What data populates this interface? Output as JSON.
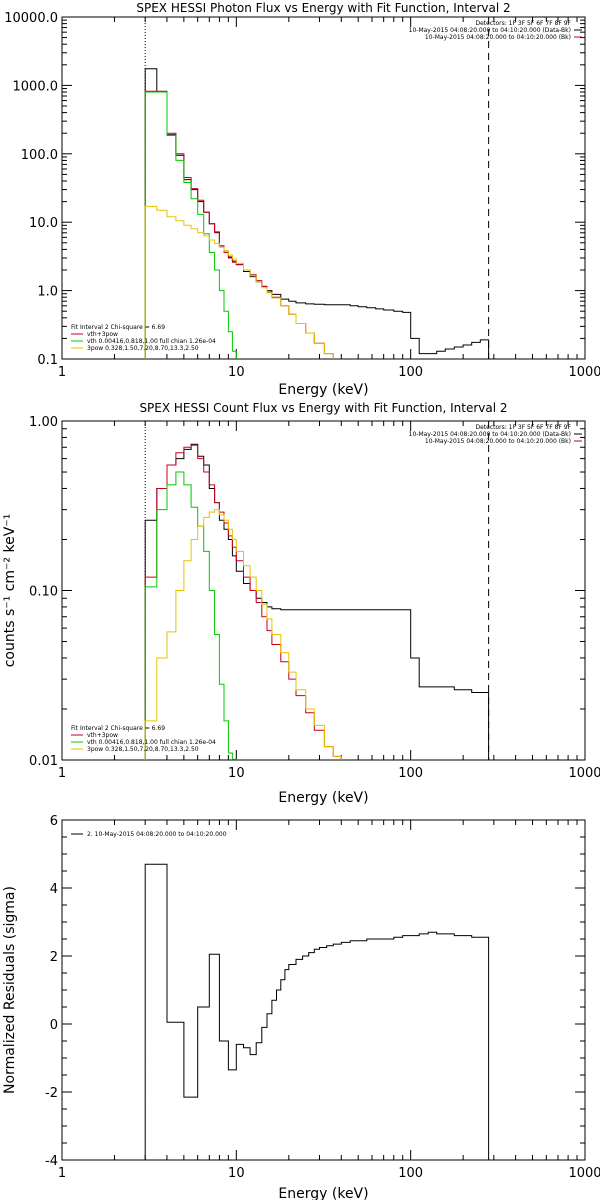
{
  "chart_data": [
    {
      "type": "line",
      "title": "SPEX HESSI Photon Flux vs Energy with Fit Function, Interval 2",
      "xlabel": "Energy (keV)",
      "ylabel": "",
      "xscale": "log",
      "yscale": "log",
      "xlim": [
        1,
        1000
      ],
      "ylim": [
        0.1,
        10000
      ],
      "xticks": [
        {
          "v": 1,
          "label": "1"
        },
        {
          "v": 10,
          "label": "10"
        },
        {
          "v": 100,
          "label": "100"
        },
        {
          "v": 1000,
          "label": "1000"
        }
      ],
      "yticks": [
        {
          "v": 0.1,
          "label": "0.1"
        },
        {
          "v": 1,
          "label": "1.0"
        },
        {
          "v": 10,
          "label": "10.0"
        },
        {
          "v": 100,
          "label": "100.0"
        },
        {
          "v": 1000,
          "label": "1000.0"
        },
        {
          "v": 10000,
          "label": "10000.0"
        }
      ],
      "vlines": [
        {
          "x": 3,
          "style": "dotted"
        },
        {
          "x": 280,
          "style": "dashed"
        }
      ],
      "legend_topright": [
        {
          "text": "Detectors: 1F 3F 5F 6F 7F 8F 9F",
          "color": ""
        },
        {
          "text": "10-May-2015 04:08:20.000 to 04:10:20.000 (Data-Bk)",
          "color": "#000000"
        },
        {
          "text": "10-May-2015 04:08:20.000 to 04:10:20.000 (Bk)",
          "color": "#c8001e"
        }
      ],
      "legend_fit": [
        {
          "text": "Fit Interval 2   Chi-square = 6.69",
          "color": ""
        },
        {
          "text": "vth+3pow",
          "color": "#c8001e"
        },
        {
          "text": "vth 0.00416,0.818,1.00  full chian 1.26e-04",
          "color": "#00c800"
        },
        {
          "text": "3pow 0.328,1.50,7.20,8.70,13.3,2.50",
          "color": "#e6c300"
        }
      ],
      "series": [
        {
          "name": "10-May-2015 04:08:20.000 to 04:10:20.000 (Data-Bk)",
          "color": "#000000",
          "edges": [
            3.0,
            3.5,
            4.0,
            4.5,
            5.0,
            5.5,
            6.0,
            6.5,
            7.0,
            7.5,
            8.0,
            8.5,
            9.0,
            9.5,
            10,
            11,
            12,
            13,
            14,
            15,
            16,
            18,
            20,
            22,
            25,
            28,
            32,
            36,
            40,
            45,
            50,
            56,
            63,
            70,
            80,
            90,
            100,
            112,
            126,
            141,
            158,
            178,
            200,
            224,
            251,
            280
          ],
          "values": [
            1750,
            800,
            190,
            95,
            42,
            30,
            20,
            14,
            9.5,
            7.2,
            4.5,
            3.8,
            3.1,
            2.7,
            2.4,
            1.9,
            1.6,
            1.35,
            1.15,
            1.0,
            0.88,
            0.75,
            0.7,
            0.66,
            0.64,
            0.63,
            0.62,
            0.62,
            0.62,
            0.6,
            0.58,
            0.56,
            0.54,
            0.52,
            0.5,
            0.48,
            0.2,
            0.12,
            0.12,
            0.13,
            0.14,
            0.15,
            0.16,
            0.175,
            0.19
          ]
        },
        {
          "name": "vth+3pow",
          "color": "#c8001e",
          "edges": [
            3.0,
            3.5,
            4.0,
            4.5,
            5.0,
            5.5,
            6.0,
            6.5,
            7.0,
            7.5,
            8.0,
            8.5,
            9.0,
            9.5,
            10,
            11,
            12,
            13,
            14,
            15,
            16,
            18,
            20,
            22,
            25,
            28,
            32,
            36
          ],
          "values": [
            820,
            820,
            200,
            100,
            45,
            31,
            21,
            14,
            9.5,
            7,
            4.5,
            3.6,
            3.0,
            2.6,
            2.4,
            2.0,
            1.7,
            1.4,
            1.15,
            0.95,
            0.8,
            0.6,
            0.45,
            0.33,
            0.24,
            0.17,
            0.12,
            0.1
          ]
        },
        {
          "name": "vth 0.00416,0.818,1.00",
          "color": "#00c800",
          "edges": [
            3.0,
            3.5,
            4.0,
            4.5,
            5.0,
            5.5,
            6.0,
            6.5,
            7.0,
            7.5,
            8.0,
            8.5,
            9.0,
            9.5,
            10
          ],
          "values": [
            800,
            800,
            185,
            80,
            38,
            22,
            13,
            6.8,
            3.6,
            2.0,
            1.0,
            0.5,
            0.25,
            0.13
          ]
        },
        {
          "name": "3pow 0.328,1.50,7.20,8.70,13.3,2.50",
          "color": "#e6c300",
          "edges": [
            3.0,
            3.5,
            4.0,
            4.5,
            5.0,
            5.5,
            6.0,
            6.5,
            7.0,
            7.5,
            8.0,
            8.5,
            9.0,
            9.5,
            10,
            11,
            12,
            13,
            14,
            15,
            16,
            18,
            20,
            22,
            25,
            28,
            32,
            36
          ],
          "values": [
            17,
            15,
            12,
            10.5,
            9,
            8,
            7,
            6.3,
            5.5,
            4.9,
            4.3,
            3.8,
            3.3,
            2.9,
            2.5,
            2.0,
            1.65,
            1.35,
            1.1,
            0.93,
            0.78,
            0.6,
            0.45,
            0.33,
            0.24,
            0.17,
            0.12
          ]
        }
      ]
    },
    {
      "type": "line",
      "title": "SPEX HESSI Count Flux vs Energy with Fit Function, Interval 2",
      "xlabel": "Energy (keV)",
      "ylabel": "counts s⁻¹ cm⁻² keV⁻¹",
      "xscale": "log",
      "yscale": "log",
      "xlim": [
        1,
        1000
      ],
      "ylim": [
        0.01,
        1.0
      ],
      "xticks": [
        {
          "v": 1,
          "label": "1"
        },
        {
          "v": 10,
          "label": "10"
        },
        {
          "v": 100,
          "label": "100"
        },
        {
          "v": 1000,
          "label": "1000"
        }
      ],
      "yticks": [
        {
          "v": 0.01,
          "label": "0.01"
        },
        {
          "v": 0.1,
          "label": "0.10"
        },
        {
          "v": 1,
          "label": "1.00"
        }
      ],
      "vlines": [
        {
          "x": 3,
          "style": "dotted"
        },
        {
          "x": 280,
          "style": "dashed"
        }
      ],
      "legend_topright": [
        {
          "text": "Detectors: 1F 3F 5F 6F 7F 8F 9F",
          "color": ""
        },
        {
          "text": "10-May-2015 04:08:20.000 to 04:10:20.000 (Data-Bk)",
          "color": "#000000"
        },
        {
          "text": "10-May-2015 04:08:20.000 to 04:10:20.000 (Bk)",
          "color": "#c8001e"
        }
      ],
      "legend_fit": [
        {
          "text": "Fit Interval 2   Chi-square = 6.69",
          "color": ""
        },
        {
          "text": "vth+3pow",
          "color": "#c8001e"
        },
        {
          "text": "vth 0.00416,0.818,1.00  full chian 1.26e-04",
          "color": "#00c800"
        },
        {
          "text": "3pow 0.328,1.50,7.20,8.70,13.3,2.50",
          "color": "#e6c300"
        }
      ],
      "series": [
        {
          "name": "10-May-2015 04:08:20.000 to 04:10:20.000 (Data-Bk)",
          "color": "#000000",
          "edges": [
            3.0,
            3.5,
            4.0,
            4.5,
            5.0,
            5.5,
            6.0,
            6.5,
            7.0,
            7.5,
            8.0,
            8.5,
            9.0,
            9.5,
            10,
            11,
            12,
            13,
            14,
            15,
            16,
            18,
            20,
            22,
            25,
            28,
            32,
            36,
            40,
            45,
            50,
            56,
            63,
            70,
            80,
            90,
            100,
            112,
            126,
            141,
            158,
            178,
            200,
            224,
            251,
            280
          ],
          "values": [
            0.26,
            0.4,
            0.55,
            0.6,
            0.68,
            0.73,
            0.62,
            0.55,
            0.4,
            0.33,
            0.26,
            0.23,
            0.2,
            0.16,
            0.13,
            0.11,
            0.1,
            0.09,
            0.085,
            0.08,
            0.078,
            0.077,
            0.077,
            0.077,
            0.077,
            0.077,
            0.077,
            0.077,
            0.077,
            0.077,
            0.077,
            0.077,
            0.077,
            0.077,
            0.077,
            0.077,
            0.04,
            0.027,
            0.027,
            0.027,
            0.027,
            0.026,
            0.026,
            0.025,
            0.025
          ]
        },
        {
          "name": "vth+3pow",
          "color": "#c8001e",
          "edges": [
            3.0,
            3.5,
            4.0,
            4.5,
            5.0,
            5.5,
            6.0,
            6.5,
            7.0,
            7.5,
            8.0,
            8.5,
            9.0,
            9.5,
            10,
            11,
            12,
            13,
            14,
            15,
            16,
            18,
            20,
            22,
            25,
            28,
            32,
            36,
            40
          ],
          "values": [
            0.12,
            0.4,
            0.55,
            0.65,
            0.7,
            0.72,
            0.6,
            0.5,
            0.42,
            0.33,
            0.29,
            0.25,
            0.21,
            0.18,
            0.15,
            0.12,
            0.1,
            0.085,
            0.07,
            0.058,
            0.048,
            0.038,
            0.03,
            0.024,
            0.019,
            0.015,
            0.012,
            0.0105
          ]
        },
        {
          "name": "vth 0.00416,0.818,1.00",
          "color": "#00c800",
          "edges": [
            3.0,
            3.5,
            4.0,
            4.5,
            5.0,
            5.5,
            6.0,
            6.5,
            7.0,
            7.5,
            8.0,
            8.5,
            9.0,
            9.5,
            10
          ],
          "values": [
            0.105,
            0.3,
            0.42,
            0.5,
            0.42,
            0.31,
            0.24,
            0.17,
            0.1,
            0.055,
            0.028,
            0.017,
            0.011,
            0.0101
          ]
        },
        {
          "name": "3pow 0.328,1.50,7.20,8.70,13.3,2.50",
          "color": "#e6c300",
          "edges": [
            3.0,
            3.5,
            4.0,
            4.5,
            5.0,
            5.5,
            6.0,
            6.5,
            7.0,
            7.5,
            8.0,
            8.5,
            9.0,
            9.5,
            10,
            11,
            12,
            13,
            14,
            15,
            16,
            18,
            20,
            22,
            25,
            28,
            32,
            36,
            40
          ],
          "values": [
            0.017,
            0.04,
            0.057,
            0.1,
            0.15,
            0.2,
            0.24,
            0.27,
            0.29,
            0.3,
            0.28,
            0.26,
            0.23,
            0.2,
            0.17,
            0.14,
            0.12,
            0.1,
            0.083,
            0.068,
            0.055,
            0.043,
            0.033,
            0.026,
            0.02,
            0.016,
            0.012,
            0.0105
          ]
        }
      ]
    },
    {
      "type": "line",
      "title": "",
      "xlabel": "Energy (keV)",
      "ylabel": "Normalized Residuals (sigma)",
      "xscale": "log",
      "yscale": "linear",
      "xlim": [
        1,
        1000
      ],
      "ylim": [
        -4,
        6
      ],
      "xticks": [
        {
          "v": 1,
          "label": "1"
        },
        {
          "v": 10,
          "label": "10"
        },
        {
          "v": 100,
          "label": "100"
        },
        {
          "v": 1000,
          "label": "1000"
        }
      ],
      "yticks": [
        {
          "v": -4,
          "label": "-4"
        },
        {
          "v": -2,
          "label": "-2"
        },
        {
          "v": 0,
          "label": "0"
        },
        {
          "v": 2,
          "label": "2"
        },
        {
          "v": 4,
          "label": "4"
        },
        {
          "v": 6,
          "label": "6"
        }
      ],
      "vlines": [],
      "legend_topright": [],
      "legend_fit": [
        {
          "text": "2. 10-May-2015 04:08:20.000 to 04:10:20.000",
          "color": "#000000"
        }
      ],
      "series": [
        {
          "name": "2. 10-May-2015 04:08:20.000 to 04:10:20.000",
          "color": "#000000",
          "edges": [
            3.0,
            4.0,
            5.0,
            6.0,
            6.5,
            7.0,
            8.0,
            9.0,
            10,
            11,
            12,
            13,
            14,
            15,
            16,
            17,
            18,
            19,
            20,
            22,
            24,
            26,
            28,
            30,
            33,
            36,
            40,
            45,
            50,
            56,
            63,
            70,
            80,
            90,
            100,
            112,
            126,
            141,
            158,
            178,
            200,
            224,
            251,
            280
          ],
          "values": [
            4.7,
            0.05,
            -2.15,
            0.5,
            0.5,
            2.05,
            -0.5,
            -1.35,
            -0.6,
            -0.7,
            -0.9,
            -0.55,
            -0.1,
            0.3,
            0.7,
            1.0,
            1.3,
            1.6,
            1.75,
            1.9,
            2.0,
            2.1,
            2.2,
            2.25,
            2.3,
            2.35,
            2.4,
            2.45,
            2.45,
            2.5,
            2.5,
            2.5,
            2.55,
            2.6,
            2.6,
            2.65,
            2.7,
            2.65,
            2.65,
            2.6,
            2.6,
            2.55,
            2.55
          ]
        }
      ]
    }
  ]
}
